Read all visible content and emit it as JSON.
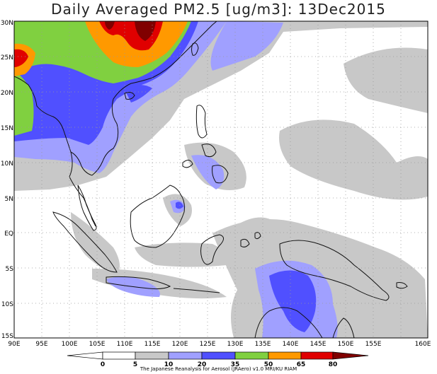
{
  "title": "Daily Averaged PM2.5 [ug/m3]: 13Dec2015",
  "credit": "The Japanese Reanalysis for Aerosol (JRAero) v1.0 MRI/KU RIAM",
  "longitude_labels": [
    "90E",
    "95E",
    "100E",
    "105E",
    "110E",
    "115E",
    "120E",
    "125E",
    "130E",
    "135E",
    "140E",
    "145E",
    "150E",
    "155E",
    "160E"
  ],
  "latitude_labels": [
    "30N",
    "25N",
    "20N",
    "15N",
    "10N",
    "5N",
    "EQ",
    "5S",
    "10S",
    "15S"
  ],
  "colorbar": {
    "labels": [
      "0",
      "5",
      "10",
      "20",
      "35",
      "50",
      "65",
      "80"
    ],
    "colors": [
      "#ffffff",
      "#ffffff",
      "#c8c8c8",
      "#a0a0ff",
      "#5050ff",
      "#80d040",
      "#ff9900",
      "#e00000",
      "#800000"
    ]
  },
  "palette": {
    "gray": "#c8c8c8",
    "light_blue": "#a0a0ff",
    "blue": "#5050ff",
    "green": "#80d040",
    "orange": "#ff9900",
    "red": "#e00000",
    "dark_red": "#800000"
  }
}
